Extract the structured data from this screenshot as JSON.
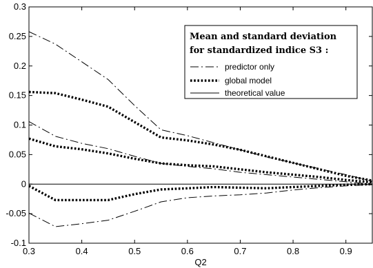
{
  "chart_data": {
    "type": "line",
    "xlabel": "Q2",
    "ylabel": "",
    "xlim": [
      0.3,
      0.95
    ],
    "ylim": [
      -0.1,
      0.3
    ],
    "xticks": [
      "0.3",
      "0.4",
      "0.5",
      "0.6",
      "0.7",
      "0.8",
      "0.9"
    ],
    "yticks": [
      "-0.1",
      "-0.05",
      "0",
      "0.05",
      "0.1",
      "0.15",
      "0.2",
      "0.25",
      "0.3"
    ],
    "grid": false,
    "legend": {
      "placement": "top-right",
      "title_line1": "Mean and standard deviation",
      "title_line2": "for standardized indice S3 :",
      "entries": [
        "predictor only",
        "global model",
        "theoretical value"
      ]
    },
    "series": [
      {
        "name": "predictor only",
        "style": "dashdot",
        "color": "#000000",
        "lines": [
          {
            "x": [
              0.3,
              0.35,
              0.4,
              0.45,
              0.5,
              0.55,
              0.6,
              0.65,
              0.7,
              0.75,
              0.8,
              0.85,
              0.9,
              0.95
            ],
            "y": [
              0.258,
              0.237,
              0.207,
              0.177,
              0.133,
              0.092,
              0.082,
              0.07,
              0.058,
              0.046,
              0.036,
              0.026,
              0.016,
              0.005
            ]
          },
          {
            "x": [
              0.3,
              0.35,
              0.4,
              0.45,
              0.5,
              0.55,
              0.6,
              0.65,
              0.7,
              0.75,
              0.8,
              0.85,
              0.9,
              0.95
            ],
            "y": [
              0.106,
              0.081,
              0.069,
              0.06,
              0.047,
              0.035,
              0.03,
              0.026,
              0.02,
              0.016,
              0.012,
              0.008,
              0.004,
              0.0
            ]
          },
          {
            "x": [
              0.3,
              0.35,
              0.4,
              0.45,
              0.5,
              0.55,
              0.6,
              0.65,
              0.7,
              0.75,
              0.8,
              0.85,
              0.9,
              0.95
            ],
            "y": [
              -0.049,
              -0.072,
              -0.067,
              -0.061,
              -0.046,
              -0.03,
              -0.023,
              -0.02,
              -0.018,
              -0.015,
              -0.01,
              -0.006,
              -0.003,
              -0.001
            ]
          }
        ]
      },
      {
        "name": "global model",
        "style": "dotted",
        "color": "#000000",
        "lines": [
          {
            "x": [
              0.3,
              0.35,
              0.4,
              0.45,
              0.5,
              0.55,
              0.6,
              0.65,
              0.7,
              0.75,
              0.8,
              0.85,
              0.9,
              0.95
            ],
            "y": [
              0.156,
              0.154,
              0.143,
              0.131,
              0.105,
              0.079,
              0.074,
              0.067,
              0.058,
              0.047,
              0.036,
              0.025,
              0.014,
              0.006
            ]
          },
          {
            "x": [
              0.3,
              0.35,
              0.4,
              0.45,
              0.5,
              0.55,
              0.6,
              0.65,
              0.7,
              0.75,
              0.8,
              0.85,
              0.9,
              0.95
            ],
            "y": [
              0.077,
              0.064,
              0.059,
              0.052,
              0.043,
              0.035,
              0.032,
              0.03,
              0.025,
              0.02,
              0.016,
              0.012,
              0.007,
              0.003
            ]
          },
          {
            "x": [
              0.3,
              0.35,
              0.4,
              0.45,
              0.5,
              0.55,
              0.6,
              0.65,
              0.7,
              0.75,
              0.8,
              0.85,
              0.9,
              0.95
            ],
            "y": [
              -0.003,
              -0.027,
              -0.027,
              -0.027,
              -0.017,
              -0.009,
              -0.007,
              -0.005,
              -0.006,
              -0.007,
              -0.005,
              -0.003,
              -0.001,
              0.0
            ]
          }
        ]
      },
      {
        "name": "theoretical value",
        "style": "solid",
        "color": "#000000",
        "lines": [
          {
            "x": [
              0.3,
              0.95
            ],
            "y": [
              0.0,
              0.0
            ]
          }
        ]
      }
    ]
  }
}
